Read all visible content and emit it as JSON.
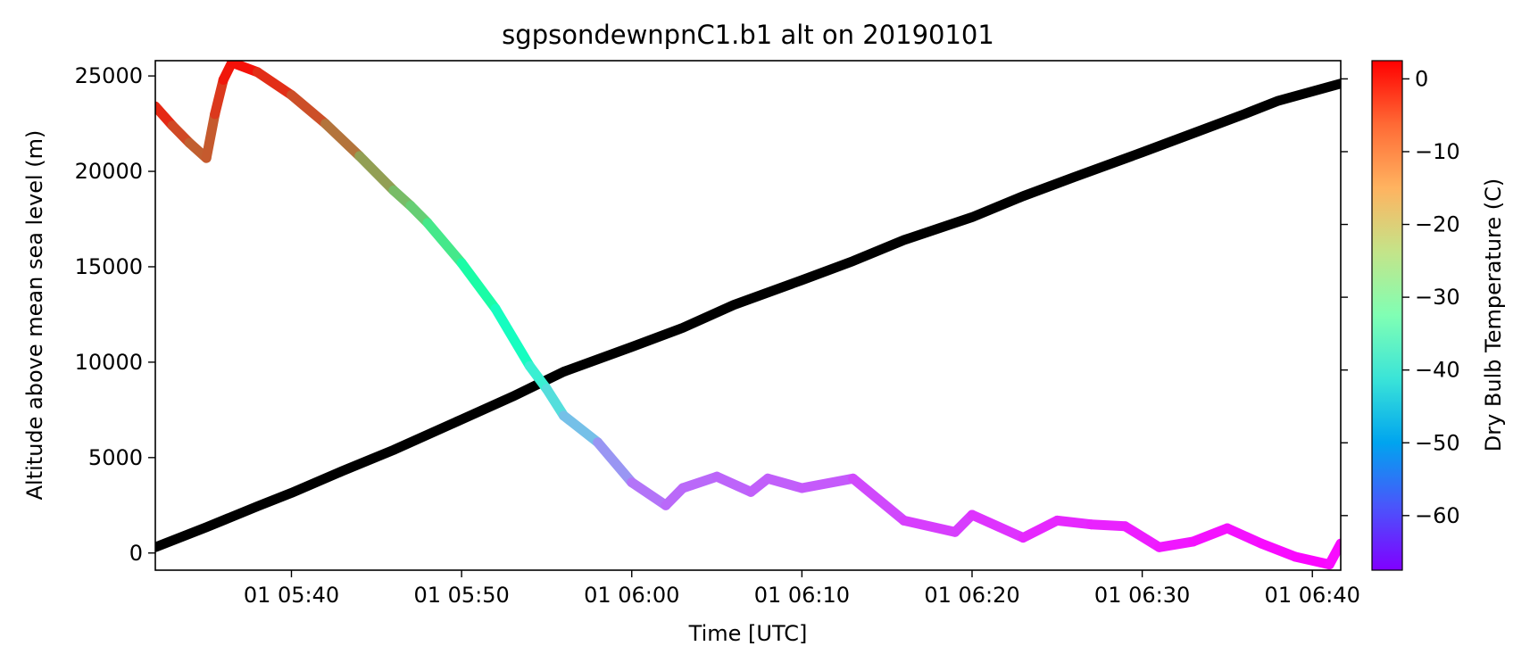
{
  "chart_data": {
    "type": "line",
    "title": "sgpsondewnpnC1.b1 alt on 20190101",
    "xlabel": "Time [UTC]",
    "ylabel": "Altitude above mean sea level (m)",
    "xlim": [
      "2019-01-01 05:32:00",
      "2019-01-01 06:41:40"
    ],
    "ylim": [
      -900,
      25800
    ],
    "x_ticks": [
      {
        "t": "2019-01-01 05:40:00",
        "label": "01 05:40"
      },
      {
        "t": "2019-01-01 05:50:00",
        "label": "01 05:50"
      },
      {
        "t": "2019-01-01 06:00:00",
        "label": "01 06:00"
      },
      {
        "t": "2019-01-01 06:10:00",
        "label": "01 06:10"
      },
      {
        "t": "2019-01-01 06:20:00",
        "label": "01 06:20"
      },
      {
        "t": "2019-01-01 06:30:00",
        "label": "01 06:30"
      },
      {
        "t": "2019-01-01 06:40:00",
        "label": "01 06:40"
      }
    ],
    "y_ticks": [
      0,
      5000,
      10000,
      15000,
      20000,
      25000
    ],
    "y_tick_labels": [
      "0",
      "5000",
      "10000",
      "15000",
      "20000",
      "25000"
    ],
    "grid": false,
    "colorbar": {
      "label": "Dry Bulb Temperature (C)",
      "colormap": "rainbow",
      "range": [
        -67.5,
        2.5
      ],
      "ticks": [
        0,
        -10,
        -20,
        -30,
        -40,
        -50,
        -60
      ],
      "tick_labels": [
        "0",
        "−10",
        "−20",
        "−30",
        "−40",
        "−50",
        "−60"
      ],
      "placement": "right"
    },
    "series": [
      {
        "color": "#000000",
        "points": [
          [
            "2019-01-01 05:32:00",
            300
          ],
          [
            "2019-01-01 05:35:00",
            1350
          ],
          [
            "2019-01-01 05:38:00",
            2450
          ],
          [
            "2019-01-01 05:40:00",
            3150
          ],
          [
            "2019-01-01 05:43:00",
            4300
          ],
          [
            "2019-01-01 05:46:00",
            5400
          ],
          [
            "2019-01-01 05:50:00",
            7000
          ],
          [
            "2019-01-01 05:53:00",
            8200
          ],
          [
            "2019-01-01 05:56:00",
            9500
          ],
          [
            "2019-01-01 06:00:00",
            10800
          ],
          [
            "2019-01-01 06:03:00",
            11800
          ],
          [
            "2019-01-01 06:06:00",
            13000
          ],
          [
            "2019-01-01 06:10:00",
            14300
          ],
          [
            "2019-01-01 06:13:00",
            15300
          ],
          [
            "2019-01-01 06:16:00",
            16400
          ],
          [
            "2019-01-01 06:20:00",
            17600
          ],
          [
            "2019-01-01 06:23:00",
            18700
          ],
          [
            "2019-01-01 06:26:00",
            19700
          ],
          [
            "2019-01-01 06:30:00",
            21000
          ],
          [
            "2019-01-01 06:33:00",
            22000
          ],
          [
            "2019-01-01 06:36:00",
            23000
          ],
          [
            "2019-01-01 06:38:00",
            23700
          ],
          [
            "2019-01-01 06:41:40",
            24600
          ]
        ]
      },
      {
        "color_by": "temperature",
        "points": [
          [
            "2019-01-01 05:32:00",
            23400,
            1
          ],
          [
            "2019-01-01 05:33:00",
            22400,
            -3
          ],
          [
            "2019-01-01 05:34:00",
            21500,
            -5
          ],
          [
            "2019-01-01 05:35:00",
            20700,
            -7
          ],
          [
            "2019-01-01 05:35:30",
            23000,
            -4
          ],
          [
            "2019-01-01 05:36:00",
            24800,
            -1
          ],
          [
            "2019-01-01 05:36:30",
            25700,
            2
          ],
          [
            "2019-01-01 05:38:00",
            25200,
            0
          ],
          [
            "2019-01-01 05:40:00",
            24000,
            -3
          ],
          [
            "2019-01-01 05:42:00",
            22500,
            -6
          ],
          [
            "2019-01-01 05:44:00",
            20800,
            -10
          ],
          [
            "2019-01-01 05:46:00",
            19000,
            -15
          ],
          [
            "2019-01-01 05:47:00",
            18200,
            -17
          ],
          [
            "2019-01-01 05:48:00",
            17300,
            -20
          ],
          [
            "2019-01-01 05:50:00",
            15200,
            -26
          ],
          [
            "2019-01-01 05:52:00",
            12800,
            -32
          ],
          [
            "2019-01-01 05:54:00",
            9800,
            -39
          ],
          [
            "2019-01-01 05:55:00",
            8600,
            -42
          ],
          [
            "2019-01-01 05:56:00",
            7200,
            -46
          ],
          [
            "2019-01-01 05:58:00",
            5800,
            -51
          ],
          [
            "2019-01-01 06:00:00",
            3700,
            -56
          ],
          [
            "2019-01-01 06:02:00",
            2500,
            -58
          ],
          [
            "2019-01-01 06:03:00",
            3400,
            -58
          ],
          [
            "2019-01-01 06:05:00",
            4000,
            -58
          ],
          [
            "2019-01-01 06:07:00",
            3200,
            -59
          ],
          [
            "2019-01-01 06:08:00",
            3900,
            -59
          ],
          [
            "2019-01-01 06:10:00",
            3400,
            -59
          ],
          [
            "2019-01-01 06:13:00",
            3900,
            -60
          ],
          [
            "2019-01-01 06:16:00",
            1700,
            -62
          ],
          [
            "2019-01-01 06:19:00",
            1100,
            -62
          ],
          [
            "2019-01-01 06:20:00",
            2000,
            -62
          ],
          [
            "2019-01-01 06:23:00",
            800,
            -64
          ],
          [
            "2019-01-01 06:25:00",
            1700,
            -64
          ],
          [
            "2019-01-01 06:27:00",
            1500,
            -64
          ],
          [
            "2019-01-01 06:29:00",
            1400,
            -65
          ],
          [
            "2019-01-01 06:31:00",
            300,
            -65
          ],
          [
            "2019-01-01 06:33:00",
            600,
            -66
          ],
          [
            "2019-01-01 06:35:00",
            1300,
            -66
          ],
          [
            "2019-01-01 06:37:00",
            500,
            -66
          ],
          [
            "2019-01-01 06:39:00",
            -200,
            -67
          ],
          [
            "2019-01-01 06:41:00",
            -600,
            -67
          ],
          [
            "2019-01-01 06:41:40",
            500,
            -66
          ]
        ]
      }
    ]
  }
}
